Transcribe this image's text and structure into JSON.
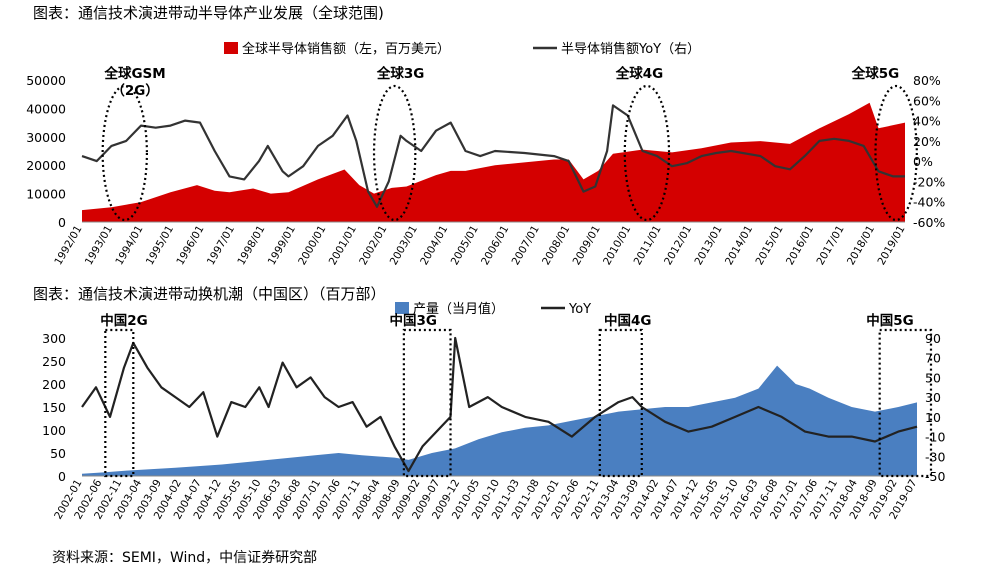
{
  "source": "资料来源：SEMI，Wind，中信证券研究部",
  "chart_data": [
    {
      "type": "area+line",
      "title": "图表：通信技术演进带动半导体产业发展（全球范围)",
      "legend": [
        {
          "label": "全球半导体销售额（左，百万美元）",
          "color": "#d40000",
          "kind": "area"
        },
        {
          "label": "半导体销售额YoY（右）",
          "color": "#333333",
          "kind": "line"
        }
      ],
      "yleft": {
        "min": 0,
        "max": 50000,
        "ticks": [
          "0",
          "10000",
          "20000",
          "30000",
          "40000",
          "50000"
        ]
      },
      "yright": {
        "min": -60,
        "max": 80,
        "ticks": [
          "-60%",
          "-40%",
          "-20%",
          "0%",
          "20%",
          "40%",
          "60%",
          "80%"
        ]
      },
      "x_ticks": [
        "1992/01",
        "1993/01",
        "1994/01",
        "1995/01",
        "1996/01",
        "1997/01",
        "1998/01",
        "1999/01",
        "2000/01",
        "2001/01",
        "2002/01",
        "2003/01",
        "2004/01",
        "2005/01",
        "2006/01",
        "2007/01",
        "2008/01",
        "2009/01",
        "2010/01",
        "2011/01",
        "2012/01",
        "2013/01",
        "2014/01",
        "2015/01",
        "2016/01",
        "2017/01",
        "2018/01",
        "2019/01"
      ],
      "x_start": 1992.0,
      "x_end": 2019.9,
      "sales": [
        [
          1992.0,
          4200
        ],
        [
          1993.0,
          5200
        ],
        [
          1994.0,
          7000
        ],
        [
          1995.0,
          10500
        ],
        [
          1995.9,
          13000
        ],
        [
          1996.5,
          11000
        ],
        [
          1997.0,
          10500
        ],
        [
          1997.8,
          11800
        ],
        [
          1998.4,
          10000
        ],
        [
          1999.0,
          10500
        ],
        [
          2000.0,
          15000
        ],
        [
          2000.9,
          18500
        ],
        [
          2001.4,
          13000
        ],
        [
          2001.9,
          10000
        ],
        [
          2002.5,
          12000
        ],
        [
          2003.0,
          12500
        ],
        [
          2004.0,
          16500
        ],
        [
          2004.5,
          18000
        ],
        [
          2005.0,
          18000
        ],
        [
          2006.0,
          20000
        ],
        [
          2007.0,
          21000
        ],
        [
          2008.0,
          22000
        ],
        [
          2008.5,
          22000
        ],
        [
          2009.0,
          15000
        ],
        [
          2009.5,
          18000
        ],
        [
          2010.0,
          24000
        ],
        [
          2011.0,
          25500
        ],
        [
          2012.0,
          24500
        ],
        [
          2013.0,
          26000
        ],
        [
          2014.0,
          28000
        ],
        [
          2015.0,
          28500
        ],
        [
          2016.0,
          27500
        ],
        [
          2017.0,
          33000
        ],
        [
          2018.0,
          38000
        ],
        [
          2018.7,
          42000
        ],
        [
          2019.0,
          33000
        ],
        [
          2019.9,
          35000
        ]
      ],
      "yoy": [
        [
          1992.0,
          5
        ],
        [
          1992.5,
          0
        ],
        [
          1993.0,
          15
        ],
        [
          1993.5,
          20
        ],
        [
          1994.0,
          35
        ],
        [
          1994.5,
          33
        ],
        [
          1995.0,
          35
        ],
        [
          1995.5,
          40
        ],
        [
          1996.0,
          38
        ],
        [
          1996.5,
          10
        ],
        [
          1997.0,
          -15
        ],
        [
          1997.5,
          -18
        ],
        [
          1998.0,
          0
        ],
        [
          1998.3,
          15
        ],
        [
          1998.8,
          -10
        ],
        [
          1999.0,
          -15
        ],
        [
          1999.5,
          -5
        ],
        [
          2000.0,
          15
        ],
        [
          2000.5,
          25
        ],
        [
          2001.0,
          45
        ],
        [
          2001.3,
          20
        ],
        [
          2001.7,
          -30
        ],
        [
          2002.0,
          -45
        ],
        [
          2002.4,
          -20
        ],
        [
          2002.8,
          25
        ],
        [
          2003.0,
          20
        ],
        [
          2003.5,
          10
        ],
        [
          2004.0,
          30
        ],
        [
          2004.5,
          38
        ],
        [
          2005.0,
          10
        ],
        [
          2005.5,
          5
        ],
        [
          2006.0,
          10
        ],
        [
          2007.0,
          8
        ],
        [
          2008.0,
          5
        ],
        [
          2008.5,
          0
        ],
        [
          2009.0,
          -30
        ],
        [
          2009.4,
          -25
        ],
        [
          2009.8,
          10
        ],
        [
          2010.0,
          55
        ],
        [
          2010.5,
          45
        ],
        [
          2011.0,
          10
        ],
        [
          2011.5,
          5
        ],
        [
          2012.0,
          -5
        ],
        [
          2012.5,
          -2
        ],
        [
          2013.0,
          5
        ],
        [
          2013.5,
          8
        ],
        [
          2014.0,
          10
        ],
        [
          2015.0,
          5
        ],
        [
          2015.5,
          -5
        ],
        [
          2016.0,
          -8
        ],
        [
          2016.5,
          5
        ],
        [
          2017.0,
          20
        ],
        [
          2017.5,
          22
        ],
        [
          2018.0,
          20
        ],
        [
          2018.5,
          15
        ],
        [
          2019.0,
          -10
        ],
        [
          2019.5,
          -15
        ],
        [
          2019.9,
          -15
        ]
      ],
      "annotations": [
        {
          "label": "全球GSM",
          "label2": "（2G）",
          "x": 1993.8,
          "x_from": 1992.7,
          "x_to": 1994.2
        },
        {
          "label": "全球3G",
          "label2": "",
          "x": 2002.8,
          "x_from": 2001.9,
          "x_to": 2003.3
        },
        {
          "label": "全球4G",
          "label2": "",
          "x": 2010.9,
          "x_from": 2010.4,
          "x_to": 2011.9
        },
        {
          "label": "全球5G",
          "label2": "",
          "x": 2018.9,
          "x_from": 2018.9,
          "x_to": 2020.3
        }
      ]
    },
    {
      "type": "area+line",
      "title": "图表：通信技术演进带动换机潮（中国区）（百万部）",
      "legend": [
        {
          "label": "产量（当月值）",
          "color": "#4a7fc1",
          "kind": "area"
        },
        {
          "label": "YoY",
          "color": "#222222",
          "kind": "line"
        }
      ],
      "yleft": {
        "min": 0,
        "max": 300,
        "ticks": [
          "0",
          "50",
          "100",
          "150",
          "200",
          "250",
          "300"
        ]
      },
      "yright": {
        "min": -50,
        "max": 90,
        "ticks": [
          "-50",
          "-30",
          "-10",
          "10",
          "30",
          "50",
          "70",
          "90"
        ]
      },
      "x_ticks": [
        "2002-01",
        "2002-06",
        "2002-11",
        "2003-04",
        "2003-09",
        "2004-02",
        "2004-07",
        "2004-12",
        "2005-05",
        "2005-10",
        "2006-03",
        "2006-08",
        "2007-01",
        "2007-06",
        "2007-11",
        "2008-04",
        "2008-09",
        "2009-02",
        "2009-07",
        "2009-12",
        "2010-05",
        "2010-10",
        "2011-03",
        "2011-08",
        "2012-01",
        "2012-06",
        "2012-11",
        "2013-04",
        "2013-09",
        "2014-02",
        "2014-07",
        "2014-12",
        "2015-05",
        "2015-10",
        "2016-03",
        "2016-08",
        "2017-01",
        "2017-06",
        "2017-11",
        "2018-04",
        "2018-09",
        "2019-02",
        "2019-07"
      ],
      "x_start": 2002.0,
      "x_end": 2019.9,
      "production": [
        [
          2002.0,
          5
        ],
        [
          2002.5,
          8
        ],
        [
          2003.0,
          12
        ],
        [
          2004.0,
          18
        ],
        [
          2005.0,
          25
        ],
        [
          2006.0,
          35
        ],
        [
          2007.0,
          45
        ],
        [
          2007.5,
          50
        ],
        [
          2008.0,
          45
        ],
        [
          2008.7,
          40
        ],
        [
          2009.0,
          35
        ],
        [
          2009.5,
          50
        ],
        [
          2010.0,
          60
        ],
        [
          2010.5,
          80
        ],
        [
          2011.0,
          95
        ],
        [
          2011.5,
          105
        ],
        [
          2012.0,
          110
        ],
        [
          2012.5,
          120
        ],
        [
          2013.0,
          130
        ],
        [
          2013.5,
          140
        ],
        [
          2014.0,
          145
        ],
        [
          2014.5,
          150
        ],
        [
          2015.0,
          150
        ],
        [
          2015.5,
          160
        ],
        [
          2016.0,
          170
        ],
        [
          2016.5,
          190
        ],
        [
          2016.9,
          240
        ],
        [
          2017.3,
          200
        ],
        [
          2017.6,
          190
        ],
        [
          2018.0,
          170
        ],
        [
          2018.5,
          150
        ],
        [
          2019.0,
          140
        ],
        [
          2019.5,
          150
        ],
        [
          2019.9,
          160
        ]
      ],
      "yoy": [
        [
          2002.0,
          20
        ],
        [
          2002.3,
          40
        ],
        [
          2002.6,
          10
        ],
        [
          2002.9,
          60
        ],
        [
          2003.1,
          85
        ],
        [
          2003.4,
          60
        ],
        [
          2003.7,
          40
        ],
        [
          2004.0,
          30
        ],
        [
          2004.3,
          20
        ],
        [
          2004.6,
          35
        ],
        [
          2004.9,
          -10
        ],
        [
          2005.2,
          25
        ],
        [
          2005.5,
          20
        ],
        [
          2005.8,
          40
        ],
        [
          2006.0,
          20
        ],
        [
          2006.3,
          65
        ],
        [
          2006.6,
          40
        ],
        [
          2006.9,
          50
        ],
        [
          2007.2,
          30
        ],
        [
          2007.5,
          20
        ],
        [
          2007.8,
          25
        ],
        [
          2008.1,
          0
        ],
        [
          2008.4,
          10
        ],
        [
          2008.7,
          -20
        ],
        [
          2009.0,
          -45
        ],
        [
          2009.3,
          -20
        ],
        [
          2009.6,
          -5
        ],
        [
          2009.9,
          10
        ],
        [
          2010.0,
          90
        ],
        [
          2010.3,
          20
        ],
        [
          2010.7,
          30
        ],
        [
          2011.0,
          20
        ],
        [
          2011.5,
          10
        ],
        [
          2012.0,
          5
        ],
        [
          2012.5,
          -10
        ],
        [
          2013.0,
          10
        ],
        [
          2013.5,
          25
        ],
        [
          2013.8,
          30
        ],
        [
          2014.0,
          20
        ],
        [
          2014.5,
          5
        ],
        [
          2015.0,
          -5
        ],
        [
          2015.5,
          0
        ],
        [
          2016.0,
          10
        ],
        [
          2016.5,
          20
        ],
        [
          2017.0,
          10
        ],
        [
          2017.5,
          -5
        ],
        [
          2018.0,
          -10
        ],
        [
          2018.5,
          -10
        ],
        [
          2019.0,
          -15
        ],
        [
          2019.5,
          -5
        ],
        [
          2019.9,
          0
        ]
      ],
      "annotations": [
        {
          "label": "中国2G",
          "x": 2002.9,
          "x_from": 2002.5,
          "x_to": 2003.1
        },
        {
          "label": "中国3G",
          "x": 2009.1,
          "x_from": 2008.9,
          "x_to": 2009.9
        },
        {
          "label": "中国4G",
          "x": 2013.7,
          "x_from": 2013.1,
          "x_to": 2014.0
        },
        {
          "label": "中国5G",
          "x": 2019.4,
          "x_from": 2019.1,
          "x_to": 2020.2
        }
      ]
    }
  ]
}
